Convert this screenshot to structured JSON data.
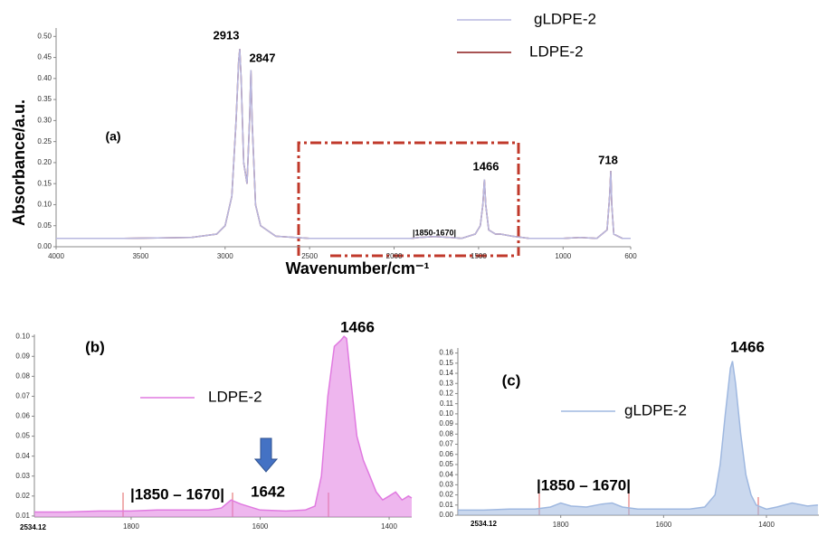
{
  "chart_data": [
    {
      "type": "line",
      "ylabel": "Absorbance/a.u.",
      "xlabel": "Wavenumber/cm⁻¹",
      "xlim": [
        4000,
        600
      ],
      "xticks": [
        4000,
        3500,
        3000,
        2500,
        2000,
        1500,
        1000,
        600
      ],
      "ylim": [
        0,
        0.52
      ],
      "yticks": [
        {
          "value": 0,
          "label": "0.00"
        },
        0.05,
        {
          "value": 0.1,
          "label": "0.10"
        },
        0.15,
        {
          "value": 0.2,
          "label": "0.20"
        },
        0.25,
        {
          "value": 0.3,
          "label": "0.30"
        },
        0.35,
        {
          "value": 0.4,
          "label": "0.40"
        },
        0.45,
        {
          "value": 0.5,
          "label": "0.50"
        }
      ],
      "annotations": [
        "(a)",
        "2913",
        "2847",
        "1466",
        "718",
        "|1850-1670|"
      ],
      "x": [
        4000,
        3600,
        3200,
        3050,
        3000,
        2960,
        2935,
        2920,
        2913,
        2905,
        2890,
        2870,
        2855,
        2847,
        2840,
        2820,
        2790,
        2700,
        2500,
        2300,
        2100,
        1900,
        1850,
        1760,
        1670,
        1600,
        1520,
        1490,
        1475,
        1466,
        1458,
        1440,
        1400,
        1370,
        1300,
        1200,
        1100,
        1000,
        900,
        800,
        740,
        725,
        718,
        712,
        700,
        650,
        600
      ],
      "series": [
        {
          "name": "LDPE-2",
          "color": "#8b1a1a",
          "values": [
            0.02,
            0.02,
            0.022,
            0.03,
            0.05,
            0.12,
            0.3,
            0.44,
            0.47,
            0.4,
            0.2,
            0.15,
            0.3,
            0.42,
            0.3,
            0.1,
            0.05,
            0.025,
            0.02,
            0.02,
            0.02,
            0.02,
            0.022,
            0.024,
            0.022,
            0.02,
            0.03,
            0.05,
            0.1,
            0.16,
            0.1,
            0.04,
            0.03,
            0.03,
            0.025,
            0.02,
            0.02,
            0.02,
            0.022,
            0.02,
            0.04,
            0.12,
            0.18,
            0.1,
            0.03,
            0.02,
            0.02
          ]
        },
        {
          "name": "gLDPE-2",
          "color": "#b8b8e0",
          "values": [
            0.02,
            0.02,
            0.022,
            0.03,
            0.05,
            0.12,
            0.3,
            0.44,
            0.47,
            0.4,
            0.2,
            0.15,
            0.3,
            0.42,
            0.3,
            0.1,
            0.05,
            0.025,
            0.02,
            0.02,
            0.02,
            0.02,
            0.022,
            0.024,
            0.022,
            0.02,
            0.03,
            0.05,
            0.1,
            0.16,
            0.1,
            0.04,
            0.03,
            0.03,
            0.025,
            0.02,
            0.02,
            0.02,
            0.022,
            0.02,
            0.04,
            0.12,
            0.18,
            0.1,
            0.03,
            0.02,
            0.02
          ]
        }
      ]
    },
    {
      "type": "line",
      "fill": true,
      "corner_label": "2534.12",
      "xlim": [
        1950,
        1365
      ],
      "xticks": [
        1800,
        1600,
        1400
      ],
      "ylim": [
        0.0095,
        0.101
      ],
      "yticks": [
        0.01,
        0.02,
        0.03,
        0.04,
        0.05,
        0.06,
        0.07,
        0.08,
        0.09,
        {
          "value": 0.1,
          "label": "0.10"
        }
      ],
      "annotations": [
        "(b)",
        "1466",
        "|1850 – 1670|",
        "1642"
      ],
      "x": [
        1950,
        1900,
        1850,
        1800,
        1760,
        1720,
        1680,
        1660,
        1645,
        1630,
        1600,
        1560,
        1530,
        1515,
        1505,
        1495,
        1485,
        1475,
        1470,
        1466,
        1460,
        1450,
        1440,
        1430,
        1420,
        1410,
        1400,
        1390,
        1380,
        1370,
        1365
      ],
      "series": [
        {
          "name": "LDPE-2",
          "color": "#e07ae0",
          "values": [
            0.012,
            0.012,
            0.0125,
            0.0125,
            0.013,
            0.013,
            0.013,
            0.014,
            0.018,
            0.016,
            0.013,
            0.0125,
            0.013,
            0.015,
            0.03,
            0.07,
            0.095,
            0.098,
            0.1,
            0.099,
            0.08,
            0.05,
            0.038,
            0.03,
            0.022,
            0.018,
            0.02,
            0.022,
            0.018,
            0.02,
            0.019
          ]
        }
      ]
    },
    {
      "type": "line",
      "fill": true,
      "corner_label": "2534.12",
      "xlim": [
        2000,
        1298
      ],
      "xticks": [
        1800,
        1600,
        1400
      ],
      "ylim": [
        0,
        0.165
      ],
      "yticks": [
        {
          "value": 0,
          "label": "0.00"
        },
        0.01,
        0.02,
        0.03,
        0.04,
        0.05,
        0.06,
        0.07,
        0.08,
        0.09,
        {
          "value": 0.1,
          "label": "0.10"
        },
        0.11,
        0.12,
        0.13,
        0.14,
        0.15,
        0.16
      ],
      "annotations": [
        "(c)",
        "1466",
        "|1850 – 1670|"
      ],
      "x": [
        2000,
        1950,
        1900,
        1850,
        1820,
        1800,
        1780,
        1750,
        1720,
        1700,
        1680,
        1650,
        1600,
        1550,
        1520,
        1500,
        1490,
        1480,
        1470,
        1466,
        1460,
        1450,
        1440,
        1430,
        1420,
        1400,
        1380,
        1350,
        1320,
        1300
      ],
      "series": [
        {
          "name": "gLDPE-2",
          "color": "#9fb8e0",
          "values": [
            0.005,
            0.005,
            0.006,
            0.006,
            0.008,
            0.012,
            0.009,
            0.008,
            0.011,
            0.012,
            0.008,
            0.006,
            0.006,
            0.006,
            0.008,
            0.02,
            0.05,
            0.1,
            0.145,
            0.152,
            0.13,
            0.08,
            0.04,
            0.02,
            0.01,
            0.006,
            0.008,
            0.012,
            0.009,
            0.01
          ]
        }
      ]
    }
  ]
}
